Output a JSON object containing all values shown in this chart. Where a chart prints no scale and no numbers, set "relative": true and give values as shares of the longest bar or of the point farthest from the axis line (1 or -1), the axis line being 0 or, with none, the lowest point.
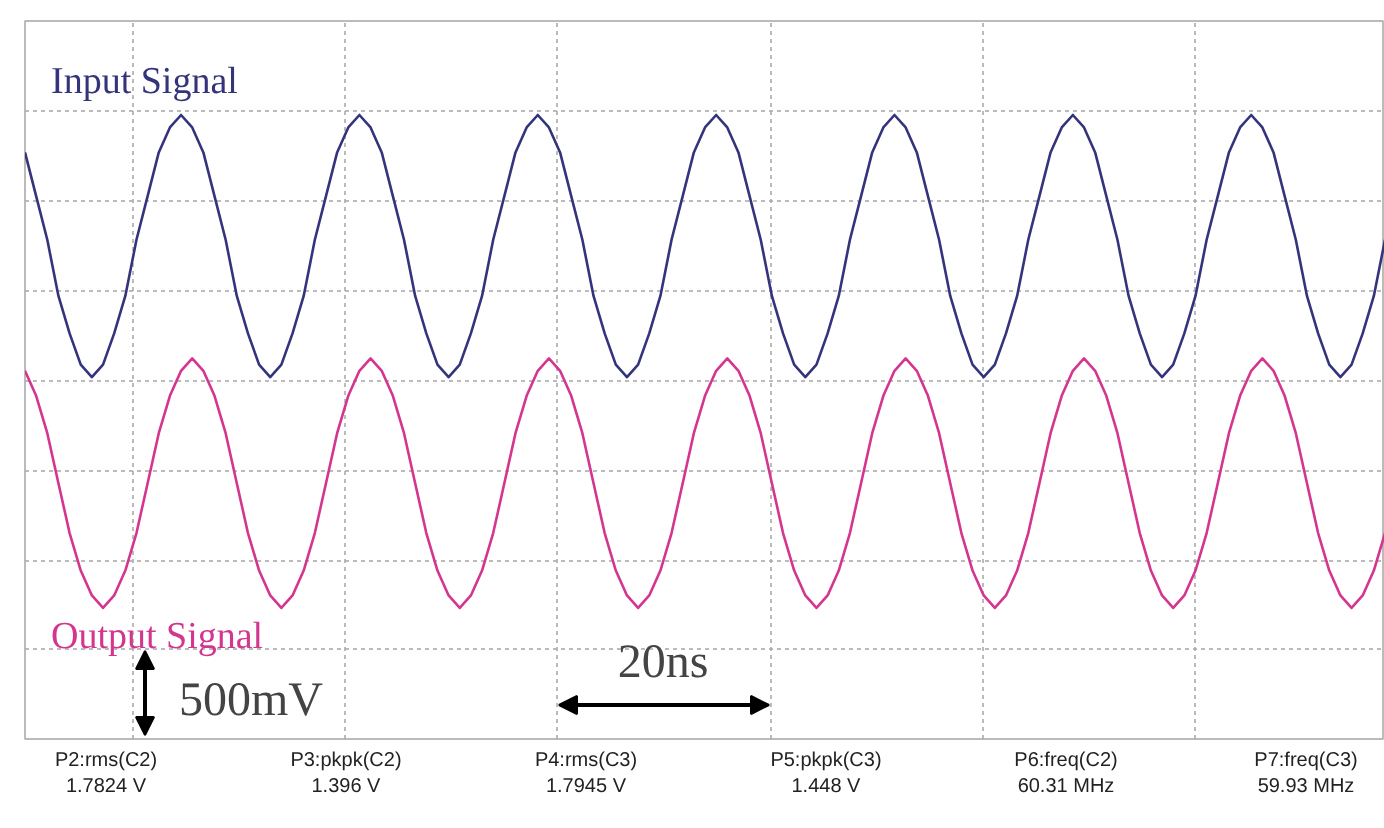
{
  "chart_data": {
    "type": "line",
    "relative": true,
    "categories": [
      null,
      null,
      null,
      null,
      null,
      null,
      null,
      null,
      null,
      null,
      null,
      null,
      null,
      null,
      null,
      null,
      null,
      null,
      null,
      null,
      null,
      null,
      null,
      null,
      null,
      null,
      null,
      null,
      null,
      null,
      null,
      null,
      null,
      null,
      null,
      null,
      null,
      null,
      null,
      null,
      null,
      null,
      null,
      null,
      null,
      null,
      null,
      null,
      null,
      null,
      null,
      null,
      null,
      null,
      null,
      null,
      null,
      null,
      null,
      null,
      null,
      null,
      null,
      null,
      null,
      null,
      null,
      null,
      null,
      null,
      null,
      null,
      null,
      null,
      null,
      null,
      null,
      null,
      null,
      null,
      null,
      null,
      null,
      null,
      null,
      null,
      null,
      null,
      null,
      null,
      null,
      null,
      null,
      null,
      null,
      null,
      null,
      null,
      null,
      null,
      null,
      null,
      null,
      null,
      null,
      null,
      null,
      null,
      null,
      null,
      null,
      null,
      null,
      null,
      null,
      null,
      null,
      null,
      null,
      null,
      null,
      null,
      null
    ],
    "tick_labels": false,
    "grid": true,
    "legend": false,
    "line_style": "solid",
    "series": [
      {
        "name": "Input Signal",
        "color": "#34347c",
        "values": [
          0.94,
          0.87,
          0.8,
          0.71,
          0.65,
          0.6,
          0.58,
          0.6,
          0.65,
          0.71,
          0.8,
          0.87,
          0.94,
          0.98,
          1.0,
          0.98,
          0.94,
          0.87,
          0.8,
          0.71,
          0.65,
          0.6,
          0.58,
          0.6,
          0.65,
          0.71,
          0.8,
          0.87,
          0.94,
          0.98,
          1.0,
          0.98,
          0.94,
          0.87,
          0.8,
          0.71,
          0.65,
          0.6,
          0.58,
          0.6,
          0.65,
          0.71,
          0.8,
          0.87,
          0.94,
          0.98,
          1.0,
          0.98,
          0.94,
          0.87,
          0.8,
          0.71,
          0.65,
          0.6,
          0.58,
          0.6,
          0.65,
          0.71,
          0.8,
          0.87,
          0.94,
          0.98,
          1.0,
          0.98,
          0.94,
          0.87,
          0.8,
          0.71,
          0.65,
          0.6,
          0.58,
          0.6,
          0.65,
          0.71,
          0.8,
          0.87,
          0.94,
          0.98,
          1.0,
          0.98,
          0.94,
          0.87,
          0.8,
          0.71,
          0.65,
          0.6,
          0.58,
          0.6,
          0.65,
          0.71,
          0.8,
          0.87,
          0.94,
          0.98,
          1.0,
          0.98,
          0.94,
          0.87,
          0.8,
          0.71,
          0.65,
          0.6,
          0.58,
          0.6,
          0.65,
          0.71,
          0.8,
          0.87,
          0.94,
          0.98,
          1.0,
          0.98,
          0.94,
          0.87,
          0.8,
          0.71,
          0.65,
          0.6,
          0.58,
          0.6,
          0.65,
          0.71,
          0.8
        ]
      },
      {
        "name": "Output Signal",
        "color": "#d4358f",
        "values": [
          0.59,
          0.55,
          0.49,
          0.41,
          0.33,
          0.27,
          0.23,
          0.21,
          0.23,
          0.27,
          0.33,
          0.41,
          0.49,
          0.55,
          0.59,
          0.61,
          0.59,
          0.55,
          0.49,
          0.41,
          0.33,
          0.27,
          0.23,
          0.21,
          0.23,
          0.27,
          0.33,
          0.41,
          0.49,
          0.55,
          0.59,
          0.61,
          0.59,
          0.55,
          0.49,
          0.41,
          0.33,
          0.27,
          0.23,
          0.21,
          0.23,
          0.27,
          0.33,
          0.41,
          0.49,
          0.55,
          0.59,
          0.61,
          0.59,
          0.55,
          0.49,
          0.41,
          0.33,
          0.27,
          0.23,
          0.21,
          0.23,
          0.27,
          0.33,
          0.41,
          0.49,
          0.55,
          0.59,
          0.61,
          0.59,
          0.55,
          0.49,
          0.41,
          0.33,
          0.27,
          0.23,
          0.21,
          0.23,
          0.27,
          0.33,
          0.41,
          0.49,
          0.55,
          0.59,
          0.61,
          0.59,
          0.55,
          0.49,
          0.41,
          0.33,
          0.27,
          0.23,
          0.21,
          0.23,
          0.27,
          0.33,
          0.41,
          0.49,
          0.55,
          0.59,
          0.61,
          0.59,
          0.55,
          0.49,
          0.41,
          0.33,
          0.27,
          0.23,
          0.21,
          0.23,
          0.27,
          0.33,
          0.41,
          0.49,
          0.55,
          0.59,
          0.61,
          0.59,
          0.55,
          0.49,
          0.41,
          0.33,
          0.27,
          0.23,
          0.21,
          0.23,
          0.27,
          0.33
        ]
      }
    ],
    "annotations": [
      "500mV",
      "20ns",
      "P2:rms(C2)",
      "1.7824 V",
      "P3:pkpk(C2)",
      "1.396 V",
      "P4:rms(C3)",
      "1.7945 V",
      "P5:pkpk(C3)",
      "1.448 V",
      "P6:freq(C2)",
      "60.31 MHz",
      "P7:freq(C3)",
      "59.93 MHz"
    ]
  }
}
